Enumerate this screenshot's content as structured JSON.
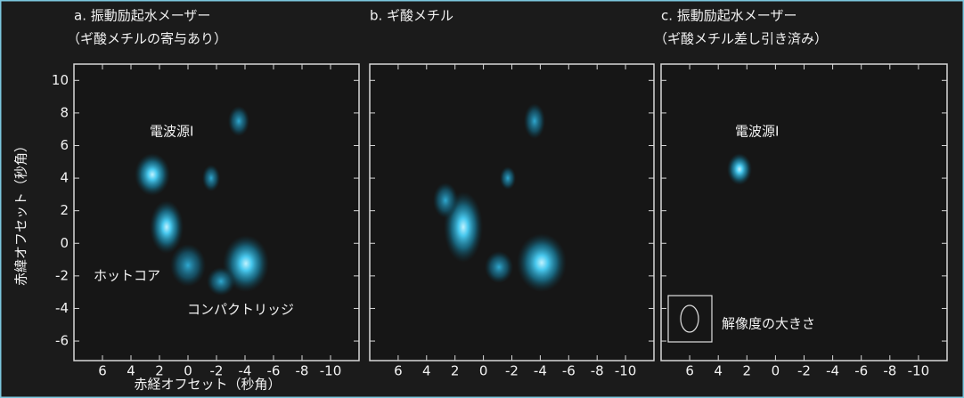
{
  "chart_data": [
    {
      "type": "image",
      "title": [
        "a. 振動励起水メーザー",
        "（ギ酸メチルの寄与あり）"
      ],
      "xlabel": "赤経オフセット（秒角）",
      "ylabel": "赤緯オフセット（秒角）",
      "xlim": [
        8,
        -12
      ],
      "ylim": [
        -7.2,
        11
      ],
      "xticks": [
        6,
        4,
        2,
        0,
        -2,
        -4,
        -6,
        -8,
        -10
      ],
      "yticks": [
        10,
        8,
        6,
        4,
        2,
        0,
        -2,
        -4,
        -6
      ],
      "ytick_labels": true,
      "annotations": [
        "電波源Ⅰ",
        "ホットコア",
        "コンパクトリッジ"
      ]
    },
    {
      "type": "image",
      "title": [
        "b. ギ酸メチル"
      ],
      "xlim": [
        8,
        -12
      ],
      "ylim": [
        -7.2,
        11
      ],
      "xticks": [
        6,
        4,
        2,
        0,
        -2,
        -4,
        -6,
        -8,
        -10
      ],
      "yticks": [
        10,
        8,
        6,
        4,
        2,
        0,
        -2,
        -4,
        -6
      ],
      "ytick_labels": false
    },
    {
      "type": "image",
      "title": [
        "c. 振動励起水メーザー",
        "（ギ酸メチル差し引き済み）"
      ],
      "xlim": [
        8,
        -12
      ],
      "ylim": [
        -7.2,
        11
      ],
      "xticks": [
        6,
        4,
        2,
        0,
        -2,
        -4,
        -6,
        -8,
        -10
      ],
      "yticks": [
        10,
        8,
        6,
        4,
        2,
        0,
        -2,
        -4,
        -6
      ],
      "ytick_labels": false,
      "annotations": [
        "電波源Ⅰ",
        "解像度の大きさ"
      ]
    }
  ]
}
